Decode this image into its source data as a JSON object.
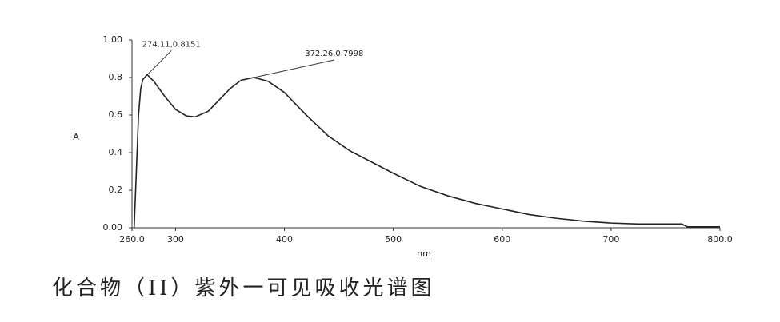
{
  "chart_data": {
    "type": "line",
    "ylabel": "A",
    "xlabel": "nm",
    "caption": "化合物（II）紫外一可见吸收光谱图",
    "xlim": [
      260,
      800
    ],
    "xticks": [
      {
        "value": 260,
        "label": "260.0"
      },
      300,
      400,
      500,
      600,
      700,
      {
        "value": 800,
        "label": "800.0"
      }
    ],
    "ylim": [
      0,
      1
    ],
    "yticks": [
      {
        "value": 0,
        "label": "0.00"
      },
      0.2,
      0.4,
      0.6,
      0.8,
      {
        "value": 1,
        "label": "1.00"
      }
    ],
    "color": "#222222",
    "x": [
      262,
      264,
      266,
      268,
      270,
      274,
      280,
      290,
      300,
      310,
      318,
      330,
      340,
      350,
      360,
      372,
      385,
      400,
      420,
      440,
      460,
      480,
      500,
      525,
      550,
      575,
      600,
      625,
      650,
      675,
      700,
      725,
      750,
      765,
      770,
      800
    ],
    "values": [
      0.0,
      0.3,
      0.6,
      0.74,
      0.79,
      0.815,
      0.78,
      0.7,
      0.63,
      0.595,
      0.59,
      0.62,
      0.68,
      0.74,
      0.785,
      0.8,
      0.78,
      0.72,
      0.6,
      0.49,
      0.41,
      0.35,
      0.29,
      0.22,
      0.17,
      0.13,
      0.1,
      0.07,
      0.05,
      0.035,
      0.025,
      0.02,
      0.02,
      0.02,
      0.005,
      0.005
    ],
    "annotations": [
      {
        "text": "274.11,0.8151",
        "x": 274.11,
        "y": 0.8151
      },
      {
        "text": "372.26,0.7998",
        "x": 372.26,
        "y": 0.7998
      }
    ]
  }
}
